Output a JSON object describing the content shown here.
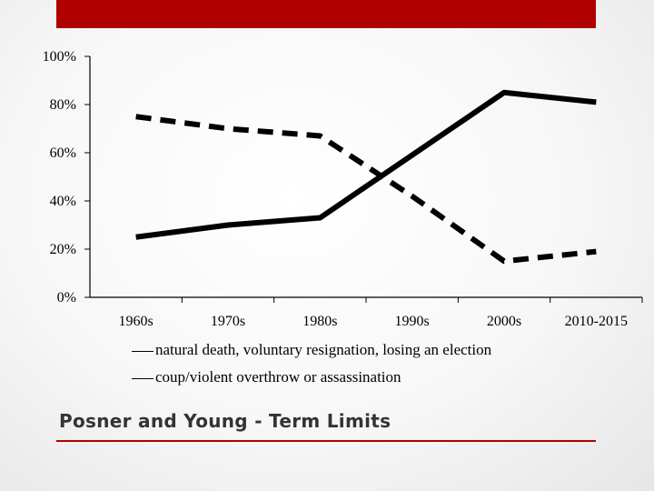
{
  "slide": {
    "title": "Posner and Young - Term Limits",
    "accent_color": "#b00000"
  },
  "chart_data": {
    "type": "line",
    "categories": [
      "1960s",
      "1970s",
      "1980s",
      "1990s",
      "2000s",
      "2010-2015"
    ],
    "y_ticks": [
      "100%",
      "80%",
      "60%",
      "40%",
      "20%",
      "0%"
    ],
    "ylim": [
      0,
      100
    ],
    "grid": false,
    "legend_position": "bottom",
    "series": [
      {
        "name": "natural death, voluntary resignation, losing an election",
        "style": "solid",
        "values": [
          25,
          30,
          33,
          59,
          85,
          81
        ]
      },
      {
        "name": "coup/violent overthrow or assassination",
        "style": "dashed",
        "values": [
          75,
          70,
          67,
          42,
          15,
          19
        ]
      }
    ]
  }
}
